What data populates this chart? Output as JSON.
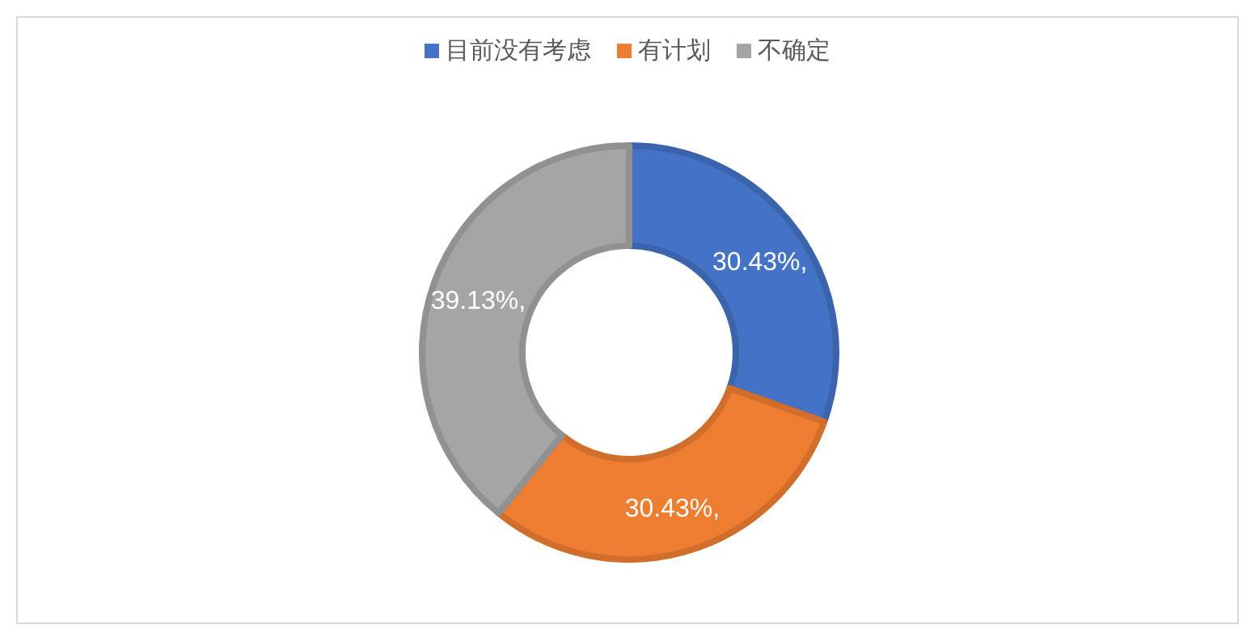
{
  "chart_data": {
    "type": "donut",
    "categories": [
      "目前没有考虑",
      "有计划",
      "不确定"
    ],
    "values": [
      30.43,
      30.43,
      39.13
    ],
    "colors": [
      "#4472c4",
      "#ed7d31",
      "#a5a5a5"
    ],
    "value_labels": [
      "30.43%,",
      "30.43%,",
      "39.13%,"
    ],
    "legend": "top"
  }
}
